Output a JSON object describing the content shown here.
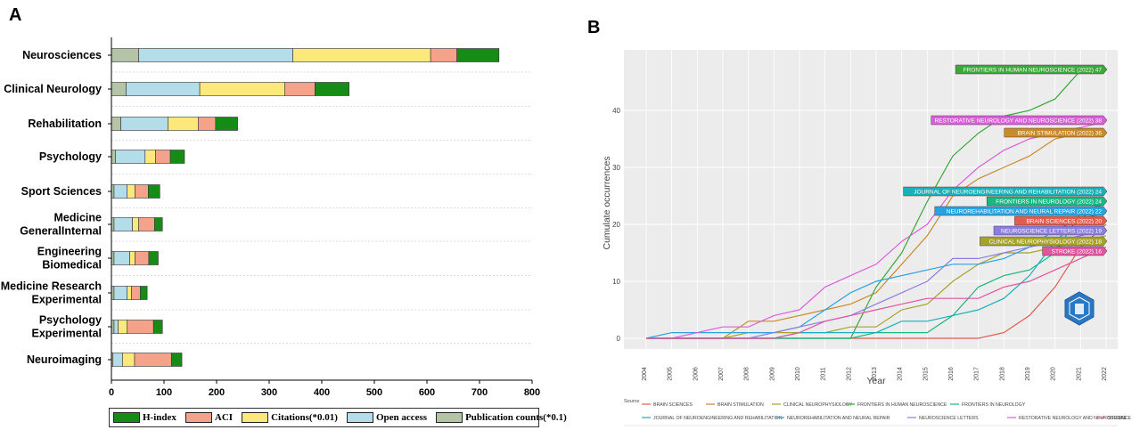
{
  "panels": {
    "a": "A",
    "b": "B"
  },
  "chart_data": [
    {
      "type": "bar",
      "orientation": "horizontal",
      "stacked": true,
      "categories": [
        "Neurosciences",
        "Clinical Neurology",
        "Rehabilitation",
        "Psychology",
        "Sport Sciences",
        "Medicine GeneralInternal",
        "Engineering Biomedical",
        "Medicine Research Experimental",
        "Psychology Experimental",
        "Neuroimaging"
      ],
      "category_lines": [
        [
          "Neurosciences"
        ],
        [
          "Clinical Neurology"
        ],
        [
          "Rehabilitation"
        ],
        [
          "Psychology"
        ],
        [
          "Sport Sciences"
        ],
        [
          "Medicine",
          "GeneralInternal"
        ],
        [
          "Engineering",
          "Biomedical"
        ],
        [
          "Medicine Research",
          "Experimental"
        ],
        [
          "Psychology",
          "Experimental"
        ],
        [
          "Neuroimaging"
        ]
      ],
      "series": [
        {
          "name": "Publication counts(*0.1)",
          "color": "#b5c4a6",
          "values": [
            52,
            28,
            18,
            8,
            5,
            5,
            5,
            5,
            5,
            3
          ]
        },
        {
          "name": "Open access",
          "color": "#b3dde9",
          "values": [
            293,
            140,
            90,
            56,
            25,
            35,
            30,
            25,
            8,
            18
          ]
        },
        {
          "name": "Citations(*0.01)",
          "color": "#fde87c",
          "values": [
            262,
            162,
            57,
            20,
            15,
            12,
            10,
            8,
            17,
            23
          ]
        },
        {
          "name": "ACI",
          "color": "#f5a28a",
          "values": [
            50,
            57,
            33,
            28,
            25,
            30,
            26,
            17,
            50,
            70
          ]
        },
        {
          "name": "H-index",
          "color": "#168c16",
          "values": [
            80,
            65,
            42,
            27,
            22,
            15,
            18,
            13,
            17,
            20
          ]
        }
      ],
      "legend_order": [
        "H-index",
        "ACI",
        "Citations(*0.01)",
        "Open access",
        "Publication counts(*0.1)"
      ],
      "xlim": [
        0,
        800
      ],
      "xticks": [
        0,
        100,
        200,
        300,
        400,
        500,
        600,
        700,
        800
      ],
      "legend_position": "bottom"
    },
    {
      "type": "line",
      "xlabel": "Year",
      "ylabel": "Cumulate occurrences",
      "x": [
        "2004",
        "2005",
        "2006",
        "2007",
        "2008",
        "2009",
        "2010",
        "2011",
        "2012",
        "2013",
        "2014",
        "2015",
        "2016",
        "2017",
        "2018",
        "2019",
        "2020",
        "2021",
        "2022"
      ],
      "ylim": [
        0,
        48
      ],
      "yticks": [
        0,
        10,
        20,
        30,
        40
      ],
      "grid": true,
      "series": [
        {
          "name": "BRAIN SCIENCES",
          "color": "#e05d4f",
          "end_label": "BRAIN SCIENCES (2022) 20",
          "values": [
            0,
            0,
            0,
            0,
            0,
            0,
            0,
            0,
            0,
            0,
            0,
            0,
            0,
            0,
            1,
            4,
            9,
            16,
            20
          ]
        },
        {
          "name": "BRAIN STIMULATION",
          "color": "#c98a2a",
          "end_label": "BRAIN STIMULATION (2022) 36",
          "values": [
            0,
            0,
            0,
            0,
            3,
            3,
            4,
            5,
            6,
            8,
            13,
            18,
            25,
            28,
            30,
            32,
            35,
            36,
            36
          ]
        },
        {
          "name": "CLINICAL NEUROPHYSIOLOGY",
          "color": "#a6a32a",
          "end_label": "CLINICAL NEUROPHYSIOLOGY (2022) 18",
          "values": [
            0,
            0,
            0,
            0,
            1,
            1,
            1,
            1,
            2,
            2,
            5,
            6,
            10,
            13,
            15,
            15,
            16,
            17,
            18
          ]
        },
        {
          "name": "FRONTIERS IN HUMAN NEUROSCIENCE",
          "color": "#3aa83a",
          "end_label": "FRONTIERS IN HUMAN NEUROSCIENCE (2022) 47",
          "values": [
            0,
            0,
            0,
            0,
            0,
            0,
            0,
            0,
            0,
            9,
            15,
            24,
            32,
            36,
            39,
            40,
            42,
            47,
            47
          ]
        },
        {
          "name": "FRONTIERS IN NEUROLOGY",
          "color": "#19b882",
          "end_label": "FRONTIERS IN NEUROLOGY (2022) 24",
          "values": [
            0,
            0,
            0,
            0,
            0,
            0,
            0,
            0,
            0,
            1,
            1,
            1,
            4,
            9,
            11,
            12,
            15,
            22,
            24
          ]
        },
        {
          "name": "JOURNAL OF NEUROENGINEERING AND REHABILITATION",
          "color": "#1bb0b8",
          "end_label": "JOURNAL OF NEUROENGINEERING AND REHABILITATION (2022) 24",
          "values": [
            0,
            0,
            0,
            0,
            0,
            0,
            1,
            1,
            1,
            1,
            3,
            3,
            4,
            5,
            7,
            11,
            17,
            21,
            24
          ]
        },
        {
          "name": "NEUROREHABILITATION AND NEURAL REPAIR",
          "color": "#28a3e0",
          "end_label": "NEUROREHABILITATION AND NEURAL REPAIR (2022) 22",
          "values": [
            0,
            1,
            1,
            1,
            1,
            1,
            2,
            5,
            8,
            10,
            11,
            12,
            13,
            13,
            14,
            16,
            19,
            21,
            22
          ]
        },
        {
          "name": "NEUROSCIENCE LETTERS",
          "color": "#8b7ee0",
          "end_label": "NEUROSCIENCE LETTERS (2022) 19",
          "values": [
            0,
            0,
            0,
            0,
            0,
            1,
            2,
            3,
            4,
            6,
            8,
            10,
            14,
            14,
            15,
            16,
            17,
            18,
            19
          ]
        },
        {
          "name": "RESTORATIVE NEUROLOGY AND NEUROSCIENCE",
          "color": "#d95fd9",
          "end_label": "RESTORATIVE NEUROLOGY AND NEUROSCIENCE (2022) 38",
          "values": [
            0,
            0,
            1,
            2,
            2,
            4,
            5,
            9,
            11,
            13,
            17,
            20,
            26,
            30,
            33,
            35,
            36,
            37,
            38
          ]
        },
        {
          "name": "STROKE",
          "color": "#e0559e",
          "end_label": "STROKE (2022) 16",
          "values": [
            0,
            0,
            0,
            0,
            0,
            0,
            1,
            3,
            4,
            5,
            6,
            7,
            7,
            7,
            9,
            10,
            12,
            14,
            16
          ]
        }
      ],
      "legend_title": "Source",
      "legend_position": "bottom",
      "label_order_top_to_bottom": [
        "FRONTIERS IN HUMAN NEUROSCIENCE",
        "RESTORATIVE NEUROLOGY AND NEUROSCIENCE",
        "BRAIN STIMULATION",
        "JOURNAL OF NEUROENGINEERING AND REHABILITATION",
        "FRONTIERS IN NEUROLOGY",
        "NEUROREHABILITATION AND NEURAL REPAIR",
        "BRAIN SCIENCES",
        "NEUROSCIENCE LETTERS",
        "CLINICAL NEUROPHYSIOLOGY",
        "STROKE"
      ]
    }
  ]
}
